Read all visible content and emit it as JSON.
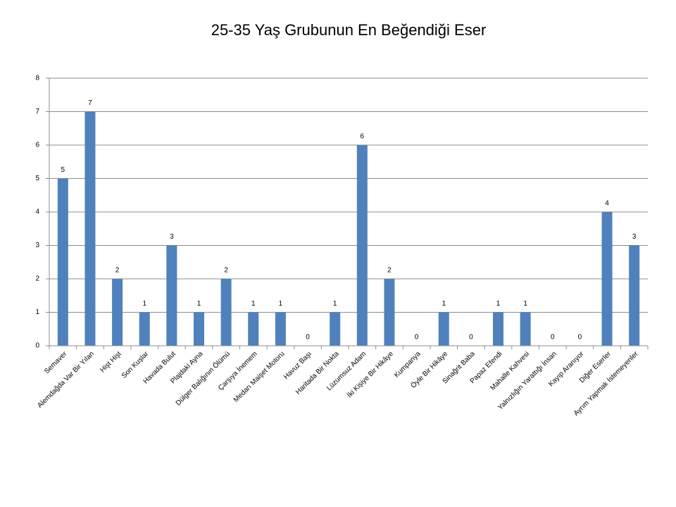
{
  "chart_data": {
    "type": "bar",
    "title": "25-35 Yaş Grubunun En Beğendiği Eser",
    "categories": [
      "Semaver",
      "Alemdağda Var Bir Yılan",
      "Hişt Hişt",
      "Son Kuşlar",
      "Havada Bulut",
      "Plajdaki Ayna",
      "Dülger Balığının Ölümü",
      "Çarşıya İnemem",
      "Medarı Maişet Motoru",
      "Havuz Başı",
      "Haritada Bir Nokta",
      "Lüzumsuz Adam",
      "İki Kişiye Bir Hikâye",
      "Kumpanya",
      "Öyle Bir Hikâye",
      "Sinağrit Baba",
      "Papaz Efendi",
      "Mahalle Kahvesi",
      "Yalnızlığın Yarattığı İnsan",
      "Kayıp Aranıyor",
      "Diğer Eserler",
      "Ayrım Yapmak İstemeyenler"
    ],
    "values": [
      5,
      7,
      2,
      1,
      3,
      1,
      2,
      1,
      1,
      0,
      1,
      6,
      2,
      0,
      1,
      0,
      1,
      1,
      0,
      0,
      4,
      3
    ],
    "color": "#4f81bd",
    "ylim": [
      0,
      8
    ],
    "yticks": [
      0,
      1,
      2,
      3,
      4,
      5,
      6,
      7,
      8
    ],
    "grid": true
  }
}
